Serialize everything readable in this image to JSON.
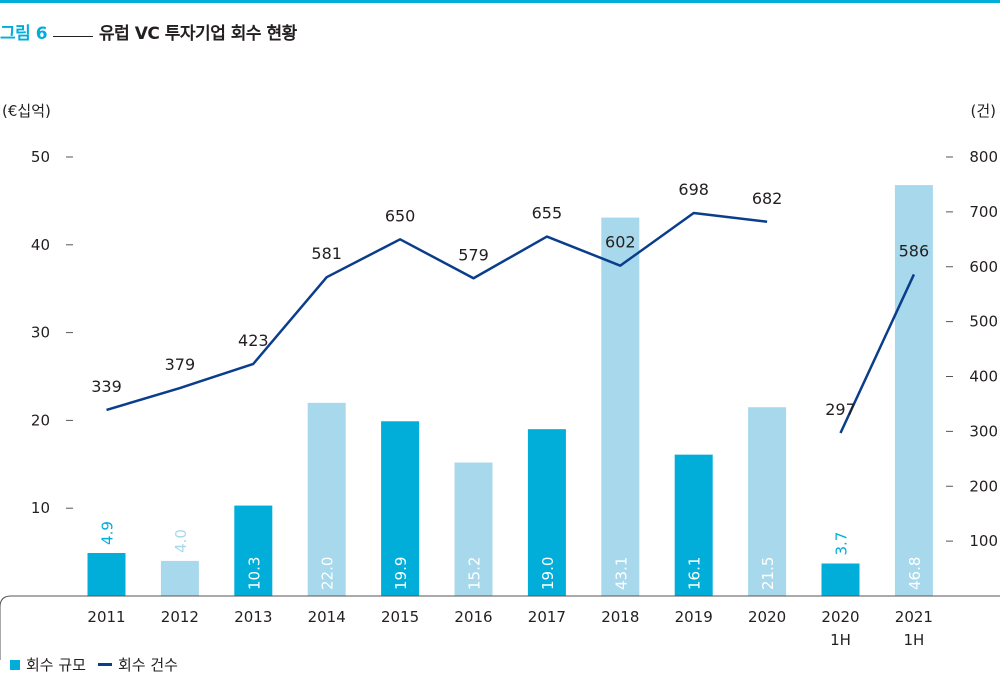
{
  "figure": {
    "number": "그림 6",
    "title": "유럽 VC 투자기업 회수 현황"
  },
  "units": {
    "left": "(€십억)",
    "right": "(건)"
  },
  "legend": {
    "bar_label": "회수 규모",
    "line_label": "회수 건수"
  },
  "colors": {
    "accent": "#00aed9",
    "bar_dark": "#00aed9",
    "bar_light": "#a8d8ec",
    "line": "#0a3d8c",
    "axis": "#555555"
  },
  "chart_data": {
    "type": "bar",
    "categories": [
      "2011",
      "2012",
      "2013",
      "2014",
      "2015",
      "2016",
      "2017",
      "2018",
      "2019",
      "2020",
      "2020\n1H",
      "2021\n1H"
    ],
    "series": [
      {
        "name": "회수 규모",
        "type": "bar",
        "axis": "left",
        "values": [
          4.9,
          4.0,
          10.3,
          22.0,
          19.9,
          15.2,
          19.0,
          43.1,
          16.1,
          21.5,
          3.7,
          46.8
        ],
        "labels": [
          "4.9",
          "4.0",
          "10.3",
          "22.0",
          "19.9",
          "15.2",
          "19.0",
          "43.1",
          "16.1",
          "21.5",
          "3.7",
          "46.8"
        ],
        "shade": [
          "dark",
          "light",
          "dark",
          "light",
          "dark",
          "light",
          "dark",
          "light",
          "dark",
          "light",
          "dark",
          "light"
        ]
      },
      {
        "name": "회수 건수",
        "type": "line",
        "axis": "right",
        "values": [
          339,
          379,
          423,
          581,
          650,
          579,
          655,
          602,
          698,
          682,
          297,
          586
        ],
        "labels": [
          "339",
          "379",
          "423",
          "581",
          "650",
          "579",
          "655",
          "602",
          "698",
          "682",
          "297",
          "586"
        ],
        "segments": [
          [
            0,
            9
          ],
          [
            10,
            11
          ]
        ]
      }
    ],
    "y_left": {
      "ticks": [
        10,
        20,
        30,
        40,
        50
      ],
      "range": [
        0,
        50
      ]
    },
    "y_right": {
      "ticks": [
        100,
        200,
        300,
        400,
        500,
        600,
        700,
        800
      ],
      "range": [
        0,
        800
      ]
    },
    "legend_position": "bottom-left",
    "grid": false
  }
}
